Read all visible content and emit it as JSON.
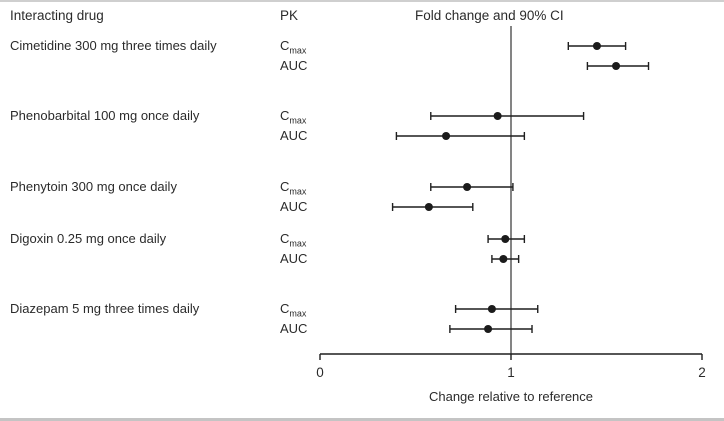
{
  "header": {
    "col_drug": "Interacting drug",
    "col_pk": "PK",
    "col_plot": "Fold change and 90% CI"
  },
  "chart_data": {
    "type": "forest",
    "title": "Fold change and 90% CI",
    "ci_level": "90% CI",
    "xlabel": "Change relative to reference",
    "xlim": [
      0,
      2
    ],
    "x_ticks": [
      0,
      1,
      2
    ],
    "reference_line": 1,
    "groups": [
      {
        "drug": "Cimetidine 300 mg three times daily",
        "measures": [
          {
            "pk_base": "C",
            "pk_sub": "max",
            "estimate": 1.45,
            "ci_low": 1.3,
            "ci_high": 1.6
          },
          {
            "pk_base": "AUC",
            "pk_sub": "",
            "estimate": 1.55,
            "ci_low": 1.4,
            "ci_high": 1.72
          }
        ]
      },
      {
        "drug": "Phenobarbital 100 mg once daily",
        "measures": [
          {
            "pk_base": "C",
            "pk_sub": "max",
            "estimate": 0.93,
            "ci_low": 0.58,
            "ci_high": 1.38
          },
          {
            "pk_base": "AUC",
            "pk_sub": "",
            "estimate": 0.66,
            "ci_low": 0.4,
            "ci_high": 1.07
          }
        ]
      },
      {
        "drug": "Phenytoin 300 mg once daily",
        "measures": [
          {
            "pk_base": "C",
            "pk_sub": "max",
            "estimate": 0.77,
            "ci_low": 0.58,
            "ci_high": 1.01
          },
          {
            "pk_base": "AUC",
            "pk_sub": "",
            "estimate": 0.57,
            "ci_low": 0.38,
            "ci_high": 0.8
          }
        ]
      },
      {
        "drug": "Digoxin 0.25 mg once daily",
        "measures": [
          {
            "pk_base": "C",
            "pk_sub": "max",
            "estimate": 0.97,
            "ci_low": 0.88,
            "ci_high": 1.07
          },
          {
            "pk_base": "AUC",
            "pk_sub": "",
            "estimate": 0.96,
            "ci_low": 0.9,
            "ci_high": 1.04
          }
        ]
      },
      {
        "drug": "Diazepam 5 mg three times daily",
        "measures": [
          {
            "pk_base": "C",
            "pk_sub": "max",
            "estimate": 0.9,
            "ci_low": 0.71,
            "ci_high": 1.14
          },
          {
            "pk_base": "AUC",
            "pk_sub": "",
            "estimate": 0.88,
            "ci_low": 0.68,
            "ci_high": 1.11
          }
        ]
      }
    ]
  }
}
